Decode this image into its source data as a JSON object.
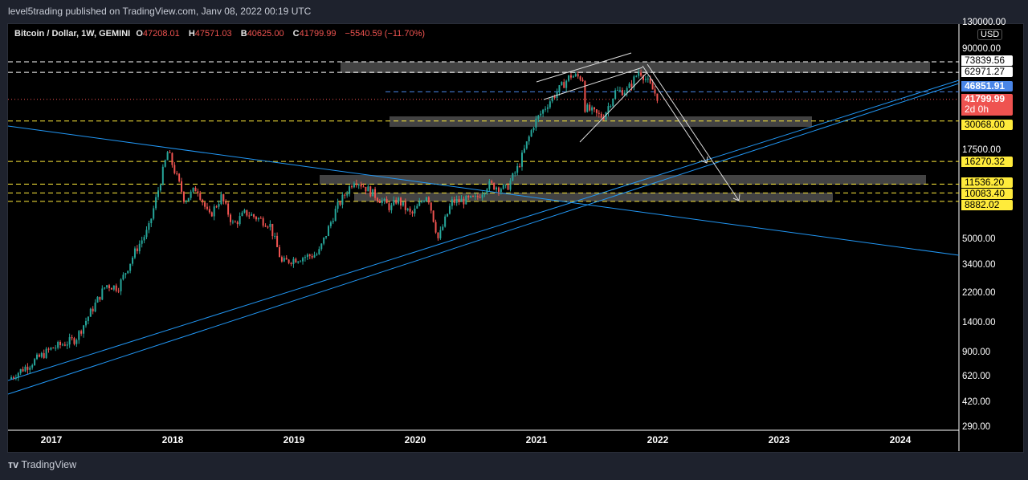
{
  "header": {
    "published": "level5trading published on TradingView.com, Janv 08, 2022 00:19 UTC"
  },
  "legend": {
    "symbol": "Bitcoin / Dollar, 1W, GEMINI",
    "o_label": "O",
    "o": "47208.01",
    "h_label": "H",
    "h": "47571.03",
    "l_label": "B",
    "l": "40625.00",
    "c_label": "C",
    "c": "41799.99",
    "change": "−5540.59 (−11.70%)"
  },
  "footer": {
    "brand": "TradingView"
  },
  "chart_data": {
    "type": "candlestick",
    "scale": "log",
    "currency": "USD",
    "y_ticks": [
      "130000.00",
      "90000.00",
      "17500.00",
      "5000.00",
      "3400.00",
      "2200.00",
      "1400.00",
      "900.00",
      "620.00",
      "420.00",
      "290.00"
    ],
    "x_ticks": [
      "2017",
      "2018",
      "2019",
      "2020",
      "2021",
      "2022",
      "2023",
      "2024"
    ],
    "price_path_approx": [
      [
        2016.65,
        600
      ],
      [
        2017.0,
        950
      ],
      [
        2017.2,
        1100
      ],
      [
        2017.45,
        2500
      ],
      [
        2017.55,
        2400
      ],
      [
        2017.7,
        4300
      ],
      [
        2017.8,
        5800
      ],
      [
        2017.96,
        19000
      ],
      [
        2018.1,
        9000
      ],
      [
        2018.2,
        11000
      ],
      [
        2018.3,
        7000
      ],
      [
        2018.4,
        9500
      ],
      [
        2018.5,
        6200
      ],
      [
        2018.6,
        7500
      ],
      [
        2018.8,
        6300
      ],
      [
        2018.9,
        3500
      ],
      [
        2019.0,
        3700
      ],
      [
        2019.2,
        4000
      ],
      [
        2019.35,
        8000
      ],
      [
        2019.5,
        12500
      ],
      [
        2019.65,
        10000
      ],
      [
        2019.8,
        8000
      ],
      [
        2019.85,
        9200
      ],
      [
        2019.97,
        7200
      ],
      [
        2020.1,
        10000
      ],
      [
        2020.19,
        5000
      ],
      [
        2020.3,
        8800
      ],
      [
        2020.5,
        9200
      ],
      [
        2020.6,
        11500
      ],
      [
        2020.75,
        10700
      ],
      [
        2020.85,
        15000
      ],
      [
        2020.98,
        29000
      ],
      [
        2021.1,
        40000
      ],
      [
        2021.28,
        60000
      ],
      [
        2021.38,
        58000
      ],
      [
        2021.4,
        37000
      ],
      [
        2021.5,
        33000
      ],
      [
        2021.55,
        32000
      ],
      [
        2021.65,
        47000
      ],
      [
        2021.75,
        48000
      ],
      [
        2021.85,
        65000
      ],
      [
        2021.9,
        57000
      ],
      [
        2022.01,
        41800
      ]
    ],
    "levels": [
      {
        "price": 73839.56,
        "label": "73839.56",
        "style": "white",
        "bg": "#ffffff"
      },
      {
        "price": 62971.27,
        "label": "62971.27",
        "style": "white",
        "bg": "#ffffff"
      },
      {
        "price": 46851.91,
        "label": "46851.91",
        "style": "blue",
        "bg": "#4a86e8"
      },
      {
        "price": 41799.99,
        "label": "41799.99",
        "sub": "2d 0h",
        "style": "red",
        "bg": "#ef5350"
      },
      {
        "price": 30068.0,
        "label": "30068.00",
        "style": "yellow",
        "bg": "#ffeb3b"
      },
      {
        "price": 16270.32,
        "label": "16270.32",
        "style": "yellow",
        "bg": "#ffeb3b"
      },
      {
        "price": 11536.2,
        "label": "11536.20",
        "style": "yellow",
        "bg": "#ffeb3b"
      },
      {
        "price": 10083.4,
        "label": "10083.40",
        "style": "yellow",
        "bg": "#ffeb3b"
      },
      {
        "price": 8882.02,
        "label": "8882.02",
        "style": "yellow",
        "bg": "#ffeb3b"
      }
    ],
    "colors": {
      "up": "#26a69a",
      "down": "#ef5350",
      "trend": "#2196f3",
      "zone": "#4a4a4a"
    }
  }
}
